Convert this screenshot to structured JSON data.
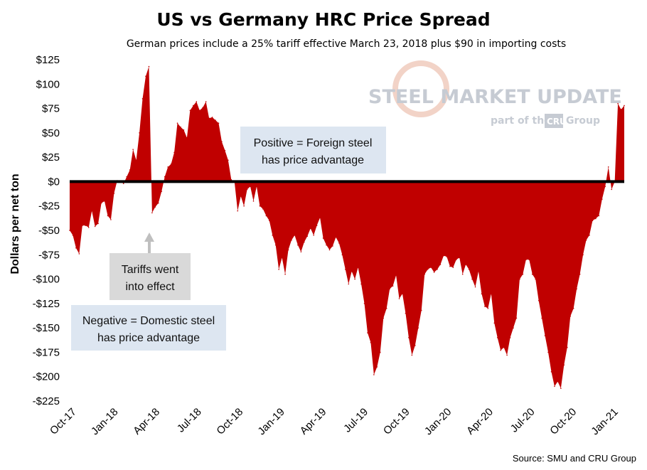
{
  "chart_data": {
    "type": "area",
    "title": "US vs Germany HRC Price Spread",
    "subtitle": "German prices include a 25% tariff effective March 23, 2018 plus $90 in importing costs",
    "ylabel": "Dollars per net ton",
    "xlabel": "",
    "ylim": [
      -225,
      125
    ],
    "yticks": [
      125,
      100,
      75,
      50,
      25,
      0,
      -25,
      -50,
      -75,
      -100,
      -125,
      -150,
      -175,
      -200,
      -225
    ],
    "ytick_labels": [
      "$125",
      "$100",
      "$75",
      "$50",
      "$25",
      "$0",
      "-$25",
      "-$50",
      "-$75",
      "-$100",
      "-$125",
      "-$150",
      "-$175",
      "-$200",
      "-$225"
    ],
    "xtick_labels": [
      "Oct-17",
      "Jan-18",
      "Apr-18",
      "Jul-18",
      "Oct-18",
      "Jan-19",
      "Apr-19",
      "Jul-19",
      "Oct-19",
      "Jan-20",
      "Apr-20",
      "Jul-20",
      "Oct-20",
      "Jan-21"
    ],
    "grid": false,
    "fill_color": "#c00000",
    "zero_line_color": "#000000",
    "x": [
      "2017-10-01",
      "2017-10-08",
      "2017-10-15",
      "2017-10-22",
      "2017-10-29",
      "2017-11-05",
      "2017-11-12",
      "2017-11-19",
      "2017-11-26",
      "2017-12-03",
      "2017-12-10",
      "2017-12-17",
      "2017-12-24",
      "2017-12-31",
      "2018-01-07",
      "2018-01-14",
      "2018-01-21",
      "2018-01-28",
      "2018-02-04",
      "2018-02-11",
      "2018-02-18",
      "2018-02-25",
      "2018-03-04",
      "2018-03-11",
      "2018-03-18",
      "2018-03-25",
      "2018-04-01",
      "2018-04-08",
      "2018-04-15",
      "2018-04-22",
      "2018-04-29",
      "2018-05-06",
      "2018-05-13",
      "2018-05-20",
      "2018-05-27",
      "2018-06-03",
      "2018-06-10",
      "2018-06-17",
      "2018-06-24",
      "2018-07-01",
      "2018-07-08",
      "2018-07-15",
      "2018-07-22",
      "2018-07-29",
      "2018-08-05",
      "2018-08-12",
      "2018-08-19",
      "2018-08-26",
      "2018-09-02",
      "2018-09-09",
      "2018-09-16",
      "2018-09-23",
      "2018-09-30",
      "2018-10-07",
      "2018-10-14",
      "2018-10-21",
      "2018-10-28",
      "2018-11-04",
      "2018-11-11",
      "2018-11-18",
      "2018-11-25",
      "2018-12-02",
      "2018-12-09",
      "2018-12-16",
      "2018-12-23",
      "2018-12-30",
      "2019-01-06",
      "2019-01-13",
      "2019-01-20",
      "2019-01-27",
      "2019-02-03",
      "2019-02-10",
      "2019-02-17",
      "2019-02-24",
      "2019-03-03",
      "2019-03-10",
      "2019-03-17",
      "2019-03-24",
      "2019-03-31",
      "2019-04-07",
      "2019-04-14",
      "2019-04-21",
      "2019-04-28",
      "2019-05-05",
      "2019-05-12",
      "2019-05-19",
      "2019-05-26",
      "2019-06-02",
      "2019-06-09",
      "2019-06-16",
      "2019-06-23",
      "2019-06-30",
      "2019-07-07",
      "2019-07-14",
      "2019-07-21",
      "2019-07-28",
      "2019-08-04",
      "2019-08-11",
      "2019-08-18",
      "2019-08-25",
      "2019-09-01",
      "2019-09-08",
      "2019-09-15",
      "2019-09-22",
      "2019-09-29",
      "2019-10-06",
      "2019-10-13",
      "2019-10-20",
      "2019-10-27",
      "2019-11-03",
      "2019-11-10",
      "2019-11-17",
      "2019-11-24",
      "2019-12-01",
      "2019-12-08",
      "2019-12-15",
      "2019-12-22",
      "2019-12-29",
      "2020-01-05",
      "2020-01-12",
      "2020-01-19",
      "2020-01-26",
      "2020-02-02",
      "2020-02-09",
      "2020-02-16",
      "2020-02-23",
      "2020-03-01",
      "2020-03-08",
      "2020-03-15",
      "2020-03-22",
      "2020-03-29",
      "2020-04-05",
      "2020-04-12",
      "2020-04-19",
      "2020-04-26",
      "2020-05-03",
      "2020-05-10",
      "2020-05-17",
      "2020-05-24",
      "2020-05-31",
      "2020-06-07",
      "2020-06-14",
      "2020-06-21",
      "2020-06-28",
      "2020-07-05",
      "2020-07-12",
      "2020-07-19",
      "2020-07-26",
      "2020-08-02",
      "2020-08-09",
      "2020-08-16",
      "2020-08-23",
      "2020-08-30",
      "2020-09-06",
      "2020-09-13",
      "2020-09-20",
      "2020-09-27",
      "2020-10-04",
      "2020-10-11",
      "2020-10-18",
      "2020-10-25",
      "2020-11-01",
      "2020-11-08",
      "2020-11-15",
      "2020-11-22",
      "2020-11-29",
      "2020-12-06",
      "2020-12-13",
      "2020-12-20",
      "2020-12-27",
      "2021-01-03",
      "2021-01-10",
      "2021-01-17",
      "2021-01-24",
      "2021-01-31",
      "2021-02-07"
    ],
    "values": [
      -50,
      -55,
      -68,
      -74,
      -45,
      -45,
      -47,
      -30,
      -46,
      -43,
      -22,
      -20,
      -35,
      -39,
      -12,
      1,
      0,
      -2,
      5,
      12,
      33,
      22,
      50,
      85,
      108,
      118,
      -32,
      -26,
      -22,
      -10,
      5,
      15,
      18,
      30,
      60,
      56,
      53,
      45,
      73,
      78,
      82,
      73,
      76,
      82,
      65,
      66,
      63,
      60,
      41,
      32,
      22,
      2,
      0,
      -30,
      -15,
      -25,
      -8,
      -5,
      -20,
      -5,
      -25,
      -28,
      -35,
      -40,
      -55,
      -65,
      -90,
      -78,
      -95,
      -70,
      -60,
      -55,
      -65,
      -72,
      -62,
      -56,
      -48,
      -55,
      -45,
      -37,
      -58,
      -65,
      -70,
      -66,
      -57,
      -63,
      -75,
      -90,
      -105,
      -92,
      -100,
      -88,
      -105,
      -125,
      -155,
      -165,
      -198,
      -190,
      -175,
      -140,
      -130,
      -110,
      -107,
      -96,
      -120,
      -115,
      -135,
      -160,
      -178,
      -168,
      -150,
      -132,
      -95,
      -90,
      -88,
      -93,
      -90,
      -85,
      -76,
      -77,
      -87,
      -88,
      -80,
      -78,
      -95,
      -85,
      -90,
      -100,
      -108,
      -92,
      -115,
      -128,
      -130,
      -115,
      -145,
      -160,
      -173,
      -170,
      -178,
      -160,
      -150,
      -140,
      -100,
      -95,
      -80,
      -80,
      -95,
      -100,
      -122,
      -140,
      -158,
      -175,
      -195,
      -210,
      -205,
      -212,
      -188,
      -170,
      -138,
      -130,
      -110,
      -95,
      -75,
      -60,
      -55,
      -40,
      -38,
      -35,
      -18,
      -5,
      15,
      -8,
      0,
      80,
      74,
      78
    ],
    "annotations": {
      "positive": [
        "Positive = Foreign steel",
        "has price advantage"
      ],
      "negative": [
        "Negative = Domestic steel",
        "has price advantage"
      ],
      "tariff": [
        "Tariffs went",
        "into effect"
      ]
    },
    "source": "Source: SMU and CRU Group"
  },
  "watermark": {
    "line1": "STEEL MARKET UPDATE",
    "line2_pre": "part of the",
    "line2_box": "CRU",
    "line2_post": "Group"
  }
}
